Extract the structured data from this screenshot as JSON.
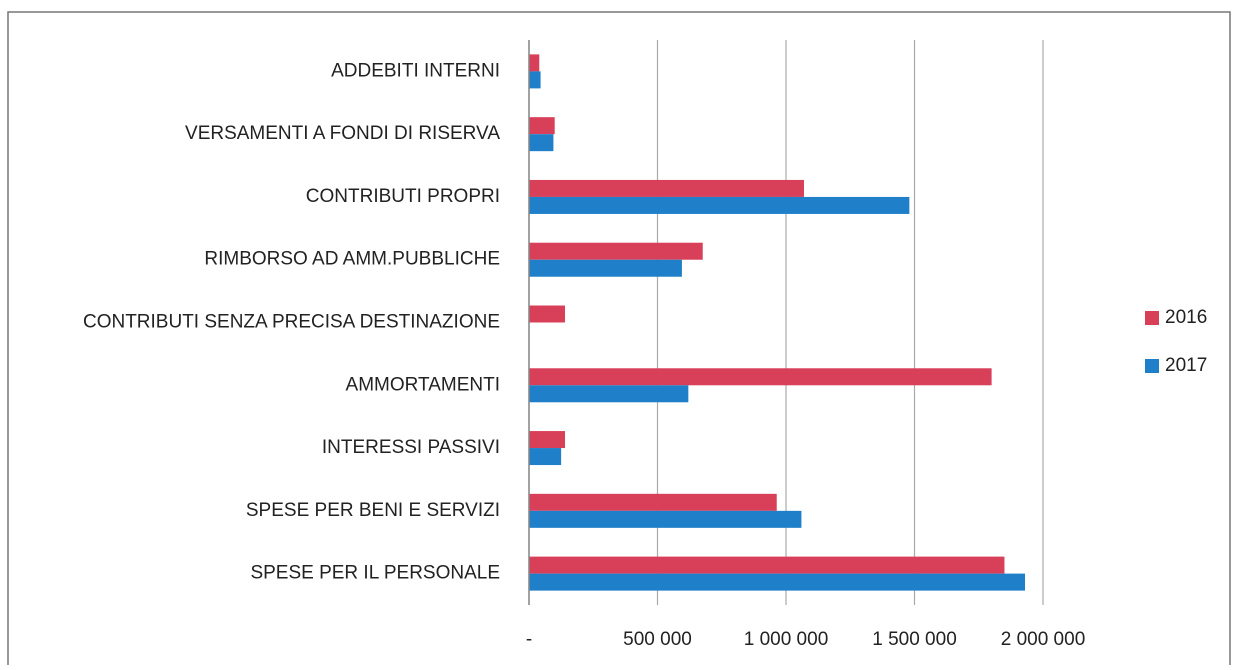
{
  "chart_data": {
    "type": "hbar",
    "categories": [
      "ADDEBITI INTERNI",
      "VERSAMENTI A FONDI DI RISERVA",
      "CONTRIBUTI PROPRI",
      "RIMBORSO AD AMM.PUBBLICHE",
      "CONTRIBUTI SENZA PRECISA DESTINAZIONE",
      "AMMORTAMENTI",
      "INTERESSI PASSIVI",
      "SPESE PER BENI E SERVIZI",
      "SPESE PER IL PERSONALE"
    ],
    "series": [
      {
        "name": "2016",
        "color": "#d8405a",
        "values": [
          40000,
          100000,
          1070000,
          676000,
          140000,
          1800000,
          140000,
          964000,
          1850000
        ]
      },
      {
        "name": "2017",
        "color": "#1f7fc8",
        "values": [
          45000,
          95000,
          1480000,
          595000,
          null,
          620000,
          125000,
          1060000,
          1930000
        ]
      }
    ],
    "xlim": [
      0,
      2000000
    ],
    "xticks": [
      {
        "value": 0,
        "label": "-"
      },
      {
        "value": 500000,
        "label": "500 000"
      },
      {
        "value": 1000000,
        "label": "1 000 000"
      },
      {
        "value": 1500000,
        "label": "1 500 000"
      },
      {
        "value": 2000000,
        "label": "2 000 000"
      }
    ],
    "grid": true,
    "legend": "right"
  }
}
